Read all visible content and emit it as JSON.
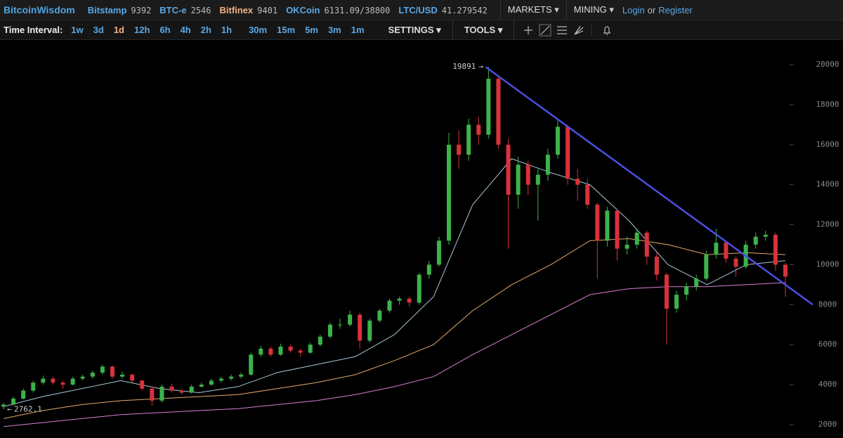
{
  "header": {
    "brand": "BitcoinWisdom",
    "tickers": [
      {
        "name": "Bitstamp",
        "price": 9392
      },
      {
        "name": "BTC-e",
        "price": 2546
      },
      {
        "name": "Bitfinex",
        "price": 9401
      },
      {
        "name": "OKCoin",
        "price": "6131.09/38800"
      },
      {
        "name": "LTC/USD",
        "price": 41.279542
      }
    ],
    "menus": [
      "MARKETS",
      "MINING"
    ],
    "login": "Login",
    "or": "or",
    "register": "Register"
  },
  "toolbar": {
    "label": "Time Interval:",
    "intervals": [
      "1w",
      "3d",
      "1d",
      "12h",
      "6h",
      "4h",
      "2h",
      "1h",
      "30m",
      "15m",
      "5m",
      "3m",
      "1m"
    ],
    "selected": "1d",
    "settings": "SETTINGS",
    "tools": "TOOLS"
  },
  "chart": {
    "type": "candlestick",
    "ylim": [
      1330,
      21270
    ],
    "yticks": [
      2000,
      4000,
      6000,
      8000,
      10000,
      12000,
      14000,
      16000,
      18000,
      20000
    ],
    "up_color": "#3cb34a",
    "down_color": "#d8323a",
    "candles": [
      [
        2900,
        3100,
        2762.1,
        3000
      ],
      [
        3000,
        3400,
        2950,
        3300
      ],
      [
        3300,
        3800,
        3250,
        3700
      ],
      [
        3700,
        4200,
        3600,
        4100
      ],
      [
        4100,
        4450,
        4000,
        4300
      ],
      [
        4300,
        4400,
        4000,
        4100
      ],
      [
        4100,
        4200,
        3800,
        4000
      ],
      [
        4000,
        4400,
        3950,
        4300
      ],
      [
        4300,
        4500,
        4200,
        4400
      ],
      [
        4400,
        4700,
        4300,
        4600
      ],
      [
        4600,
        5000,
        4500,
        4900
      ],
      [
        4900,
        4950,
        4300,
        4400
      ],
      [
        4400,
        4650,
        4300,
        4500
      ],
      [
        4500,
        4550,
        4100,
        4200
      ],
      [
        4200,
        4250,
        3700,
        3800
      ],
      [
        3800,
        3900,
        2950,
        3200
      ],
      [
        3200,
        4000,
        3100,
        3900
      ],
      [
        3900,
        4050,
        3600,
        3700
      ],
      [
        3700,
        3800,
        3500,
        3600
      ],
      [
        3600,
        4000,
        3550,
        3900
      ],
      [
        3900,
        4100,
        3850,
        4000
      ],
      [
        4000,
        4300,
        3950,
        4200
      ],
      [
        4200,
        4400,
        4100,
        4300
      ],
      [
        4300,
        4500,
        4200,
        4400
      ],
      [
        4400,
        4600,
        4300,
        4500
      ],
      [
        4500,
        5600,
        4450,
        5500
      ],
      [
        5500,
        5950,
        5400,
        5800
      ],
      [
        5800,
        5900,
        5400,
        5500
      ],
      [
        5500,
        6050,
        5450,
        5900
      ],
      [
        5900,
        6000,
        5600,
        5700
      ],
      [
        5700,
        5800,
        5400,
        5600
      ],
      [
        5600,
        6100,
        5550,
        6000
      ],
      [
        6000,
        6500,
        5900,
        6400
      ],
      [
        6400,
        7100,
        6300,
        7000
      ],
      [
        7000,
        7300,
        6800,
        7000
      ],
      [
        7000,
        7700,
        6900,
        7500
      ],
      [
        7500,
        7600,
        5800,
        6200
      ],
      [
        6200,
        7300,
        6100,
        7200
      ],
      [
        7200,
        7800,
        7100,
        7700
      ],
      [
        7700,
        8300,
        7600,
        8200
      ],
      [
        8200,
        8400,
        8000,
        8300
      ],
      [
        8300,
        8400,
        7900,
        8100
      ],
      [
        8100,
        9600,
        8000,
        9500
      ],
      [
        9500,
        10200,
        9300,
        10000
      ],
      [
        10000,
        11400,
        9900,
        11200
      ],
      [
        11200,
        16600,
        11000,
        16000
      ],
      [
        16000,
        16700,
        14800,
        15500
      ],
      [
        15500,
        17300,
        15200,
        17000
      ],
      [
        17000,
        17400,
        16000,
        16500
      ],
      [
        16500,
        19891,
        16300,
        19300
      ],
      [
        19300,
        19400,
        15800,
        16000
      ],
      [
        16000,
        16300,
        10800,
        13500
      ],
      [
        13500,
        15400,
        12800,
        15000
      ],
      [
        15000,
        15200,
        13500,
        14000
      ],
      [
        14000,
        14800,
        12200,
        14500
      ],
      [
        14500,
        15800,
        14200,
        15500
      ],
      [
        15500,
        17200,
        15300,
        16900
      ],
      [
        16900,
        17000,
        14000,
        14300
      ],
      [
        14300,
        14800,
        13200,
        14000
      ],
      [
        14000,
        14300,
        12800,
        13000
      ],
      [
        13000,
        13100,
        9300,
        11200
      ],
      [
        11200,
        12900,
        10900,
        12700
      ],
      [
        12700,
        12800,
        10200,
        10800
      ],
      [
        10800,
        11400,
        10500,
        11000
      ],
      [
        11000,
        11800,
        10800,
        11600
      ],
      [
        11600,
        11700,
        10000,
        10400
      ],
      [
        10400,
        10600,
        9200,
        9500
      ],
      [
        9500,
        9600,
        6000,
        7800
      ],
      [
        7800,
        8700,
        7600,
        8500
      ],
      [
        8500,
        9100,
        8200,
        8900
      ],
      [
        8900,
        9500,
        8700,
        9300
      ],
      [
        9300,
        10700,
        9200,
        10500
      ],
      [
        10500,
        11800,
        10300,
        11100
      ],
      [
        11100,
        11200,
        10100,
        10300
      ],
      [
        10300,
        10400,
        9400,
        9900
      ],
      [
        9900,
        11200,
        9800,
        11000
      ],
      [
        11000,
        11600,
        10800,
        11400
      ],
      [
        11400,
        11700,
        11200,
        11500
      ],
      [
        11500,
        11600,
        9700,
        10000
      ],
      [
        10000,
        10100,
        8400,
        9400
      ]
    ],
    "moving_averages": [
      {
        "color": "#a9c8d8",
        "values": [
          2900,
          3400,
          3800,
          4200,
          3800,
          3600,
          3900,
          4600,
          5000,
          5400,
          6500,
          8400,
          13000,
          15300,
          14600,
          14000,
          12200,
          10000,
          9000,
          10000,
          10200
        ]
      },
      {
        "color": "#e3a86a",
        "values": [
          2300,
          2700,
          3000,
          3200,
          3300,
          3400,
          3500,
          3800,
          4100,
          4500,
          5200,
          6000,
          7700,
          9000,
          10000,
          11200,
          11300,
          11000,
          10500,
          10600,
          10500
        ]
      },
      {
        "color": "#d67fd6",
        "values": [
          1900,
          2100,
          2300,
          2500,
          2600,
          2700,
          2800,
          3000,
          3200,
          3500,
          3900,
          4400,
          5500,
          6500,
          7500,
          8500,
          8800,
          8900,
          8900,
          9000,
          9100
        ]
      }
    ],
    "trendline": {
      "color": "#4b4fe0",
      "values": [
        19891,
        8000
      ]
    }
  }
}
